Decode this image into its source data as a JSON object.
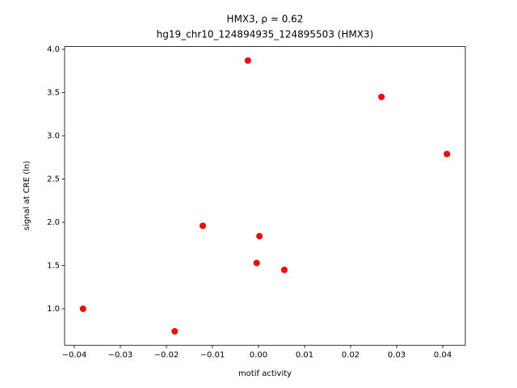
{
  "chart_data": {
    "type": "scatter",
    "title": "HMX3, ρ = 0.62",
    "subtitle": "hg19_chr10_124894935_124895503 (HMX3)",
    "x_label": "motif activity",
    "y_label": "signal at CRE (ln)",
    "color": "#ff0000",
    "x": [
      -0.0023,
      0.0267,
      0.0409,
      -0.0121,
      0.0002,
      -0.0004,
      0.0056,
      -0.0381,
      -0.0182
    ],
    "values": [
      3.87,
      3.45,
      2.79,
      1.96,
      1.84,
      1.53,
      1.45,
      1.0,
      0.74
    ],
    "xlim": [
      -0.0421,
      0.0449
    ],
    "ylim": [
      0.578,
      4.032
    ],
    "xticks": [
      {
        "value": -0.04,
        "label": "−0.04"
      },
      {
        "value": -0.03,
        "label": "−0.03"
      },
      {
        "value": -0.02,
        "label": "−0.02"
      },
      {
        "value": -0.01,
        "label": "−0.01"
      },
      {
        "value": 0,
        "label": "0.00"
      },
      {
        "value": 0.01,
        "label": "0.01"
      },
      {
        "value": 0.02,
        "label": "0.02"
      },
      {
        "value": 0.03,
        "label": "0.03"
      },
      {
        "value": 0.04,
        "label": "0.04"
      }
    ],
    "yticks": [
      {
        "value": 1,
        "label": "1.0"
      },
      1.5,
      {
        "value": 2,
        "label": "2.0"
      },
      2.5,
      {
        "value": 3,
        "label": "3.0"
      },
      3.5,
      {
        "value": 4,
        "label": "4.0"
      }
    ]
  }
}
